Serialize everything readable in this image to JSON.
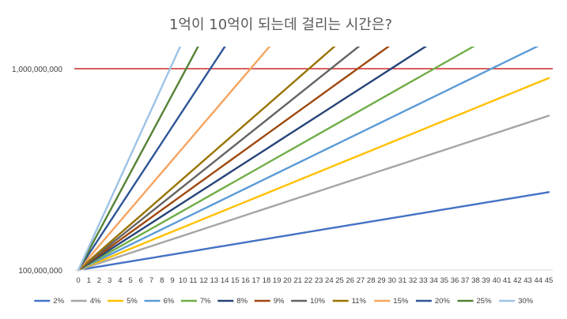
{
  "chart_data": {
    "type": "line",
    "title": "1억이 10억이 되는데 걸리는 시간은?",
    "y_scale": "log",
    "ylim": [
      100000000,
      1300000000
    ],
    "y_ticks": [
      "100,000,000",
      "1,000,000,000"
    ],
    "y_tick_values": [
      100000000,
      1000000000
    ],
    "x": [
      0,
      1,
      2,
      3,
      4,
      5,
      6,
      7,
      8,
      9,
      10,
      11,
      12,
      13,
      14,
      15,
      16,
      17,
      18,
      19,
      20,
      21,
      22,
      23,
      24,
      25,
      26,
      27,
      28,
      29,
      30,
      31,
      32,
      33,
      34,
      35,
      36,
      37,
      38,
      39,
      40,
      41,
      42,
      43,
      44,
      45
    ],
    "x_labels": [
      "0",
      "1",
      "2",
      "3",
      "4",
      "5",
      "6",
      "7",
      "8",
      "9",
      "10",
      "11",
      "12",
      "13",
      "14",
      "15",
      "16",
      "17",
      "18",
      "19",
      "20",
      "21",
      "22",
      "23",
      "24",
      "25",
      "26",
      "27",
      "28",
      "29",
      "30",
      "31",
      "32",
      "33",
      "34",
      "35",
      "36",
      "37",
      "38",
      "39",
      "40",
      "41",
      "42",
      "43",
      "44",
      "45"
    ],
    "principal": 100000000,
    "reference_line": {
      "value": 1000000000,
      "color": "#c00000"
    },
    "grid": false,
    "legend_position": "bottom",
    "series": [
      {
        "name": "2%",
        "rate": 0.02,
        "color": "#4472c4"
      },
      {
        "name": "4%",
        "rate": 0.04,
        "color": "#a5a5a5"
      },
      {
        "name": "5%",
        "rate": 0.05,
        "color": "#ffc000"
      },
      {
        "name": "6%",
        "rate": 0.06,
        "color": "#5b9bd5"
      },
      {
        "name": "7%",
        "rate": 0.07,
        "color": "#70ad47"
      },
      {
        "name": "8%",
        "rate": 0.08,
        "color": "#264478"
      },
      {
        "name": "9%",
        "rate": 0.09,
        "color": "#9e480e"
      },
      {
        "name": "10%",
        "rate": 0.1,
        "color": "#636363"
      },
      {
        "name": "11%",
        "rate": 0.11,
        "color": "#997300"
      },
      {
        "name": "15%",
        "rate": 0.15,
        "color": "#f4a460"
      },
      {
        "name": "20%",
        "rate": 0.2,
        "color": "#2e5597"
      },
      {
        "name": "25%",
        "rate": 0.25,
        "color": "#548235"
      },
      {
        "name": "30%",
        "rate": 0.3,
        "color": "#9dc3e6"
      }
    ]
  }
}
